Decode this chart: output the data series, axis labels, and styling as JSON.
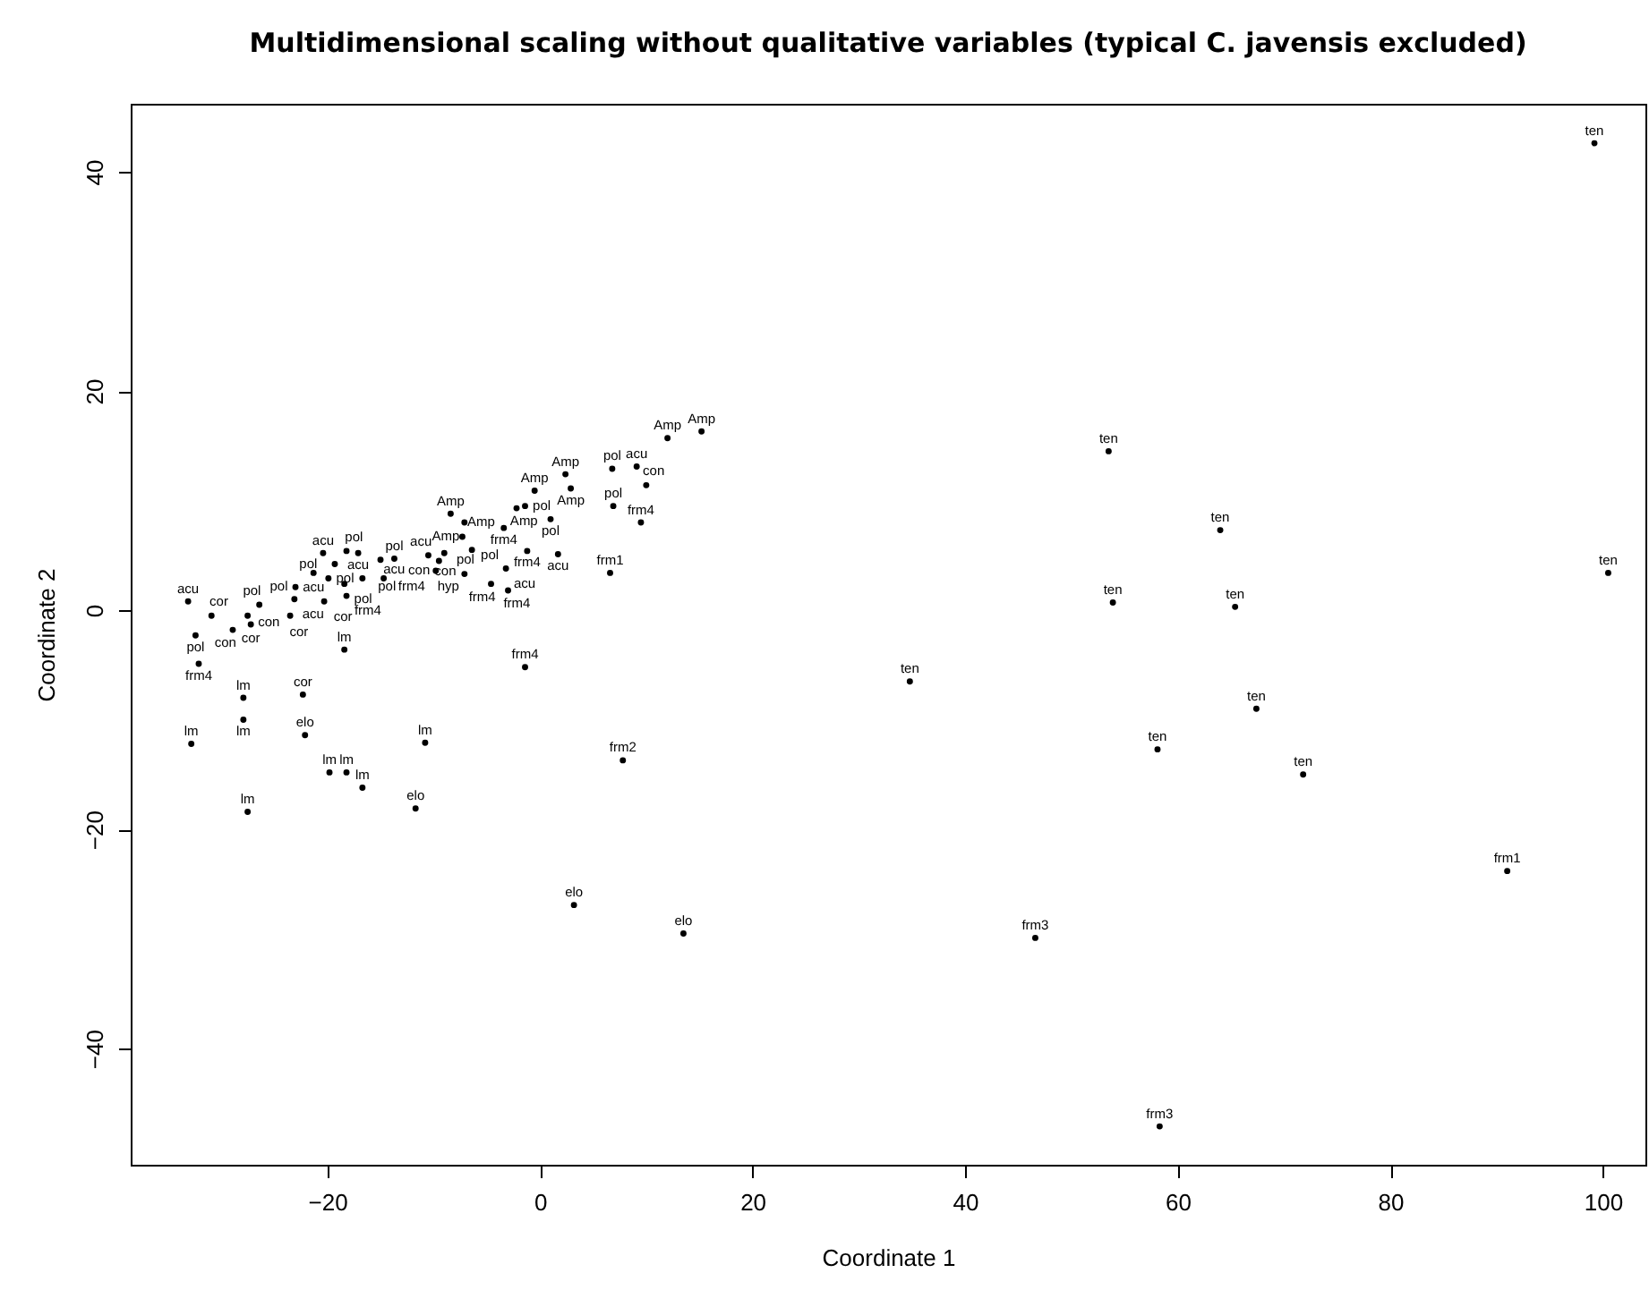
{
  "chart_data": {
    "type": "scatter",
    "title": "Multidimensional scaling without qualitative variables (typical C. javensis excluded)",
    "xlabel": "Coordinate 1",
    "ylabel": "Coordinate 2",
    "xlim": [
      -38.5,
      104
    ],
    "ylim": [
      -50.6,
      46.2
    ],
    "xticks": [
      -20,
      0,
      20,
      40,
      60,
      80,
      100
    ],
    "yticks": [
      -40,
      -20,
      0,
      20,
      40
    ],
    "grid": false,
    "legend": false,
    "marker": "circle",
    "series": [
      {
        "color": "#000000",
        "x": [
          99.2,
          100.5,
          53.5,
          64.0,
          53.9,
          65.4,
          34.8,
          67.4,
          58.1,
          71.8,
          91.0,
          46.6,
          58.3,
          3.2,
          13.5,
          7.8,
          -1.4,
          6.6,
          9.5,
          6.9,
          10.0,
          6.8,
          9.1,
          12.0,
          15.2,
          2.4,
          -0.5,
          2.9,
          -2.2,
          -1.4,
          1.0,
          -3.4,
          -8.4,
          -7.1,
          -7.3,
          -6.4,
          -1.2,
          1.7,
          -3.2,
          -4.6,
          -3.0,
          -7.1,
          -9.8,
          -10.5,
          -9.0,
          -9.5,
          -13.7,
          -17.1,
          -20.4,
          -18.2,
          -19.3,
          -15.0,
          -21.3,
          -19.9,
          -18.4,
          -16.7,
          -14.7,
          -23.0,
          -23.1,
          -20.3,
          -18.2,
          -33.1,
          -30.9,
          -27.5,
          -26.4,
          -27.2,
          -28.9,
          -32.4,
          -23.5,
          -32.1,
          -18.4,
          -27.9,
          -22.3,
          -27.9,
          -22.1,
          -32.8,
          -10.8,
          -19.8,
          -18.2,
          -16.7,
          -27.5,
          -11.7
        ],
        "values": [
          42.6,
          3.4,
          14.5,
          7.3,
          0.7,
          0.3,
          -6.5,
          -9.0,
          -12.7,
          -15.0,
          -23.8,
          -29.9,
          -47.1,
          -26.9,
          -29.5,
          -13.7,
          -5.2,
          3.4,
          8.0,
          9.5,
          11.4,
          12.9,
          13.1,
          15.7,
          16.3,
          12.4,
          10.9,
          11.1,
          9.3,
          9.5,
          8.3,
          7.5,
          8.8,
          8.0,
          6.7,
          5.5,
          5.4,
          5.1,
          3.8,
          2.4,
          1.8,
          3.3,
          3.6,
          5.0,
          5.2,
          4.5,
          4.7,
          5.2,
          5.2,
          5.4,
          4.2,
          4.6,
          3.4,
          2.9,
          2.4,
          2.9,
          2.9,
          2.1,
          1.0,
          0.8,
          1.3,
          0.8,
          -0.5,
          -0.5,
          0.5,
          -1.3,
          -1.8,
          -2.3,
          -0.5,
          -4.9,
          -3.6,
          -8.0,
          -7.7,
          -10.0,
          -11.4,
          -12.2,
          -12.1,
          -14.8,
          -14.8,
          -16.2,
          -18.4,
          -18.1
        ],
        "value_labels": [
          "ten",
          "ten",
          "ten",
          "ten",
          "ten",
          "ten",
          "ten",
          "ten",
          "ten",
          "ten",
          "frm1",
          "frm3",
          "frm3",
          "elo",
          "elo",
          "frm2",
          "frm4",
          "frm1",
          "frm4",
          "pol",
          "con",
          "pol",
          "acu",
          "Amp",
          "Amp",
          "Amp",
          "Amp",
          "Amp",
          "Amp",
          "pol",
          "pol",
          "frm4",
          "Amp",
          "Amp",
          "Amp",
          "pol",
          "frm4",
          "acu",
          "acu",
          "frm4",
          "frm4",
          "hyp",
          "con",
          "acu",
          "pol",
          "con",
          "pol",
          "acu",
          "acu",
          "pol",
          "pol",
          "acu",
          "acu",
          "pol",
          "pol",
          "pol",
          "frm4",
          "pol",
          "acu",
          "cor",
          "frm4",
          "acu",
          "cor",
          "con",
          "pol",
          "cor",
          "con",
          "pol",
          "cor",
          "frm4",
          "lm",
          "lm",
          "cor",
          "lm",
          "elo",
          "lm",
          "lm",
          "lm",
          "lm",
          "lm",
          "lm",
          "elo"
        ]
      }
    ]
  }
}
